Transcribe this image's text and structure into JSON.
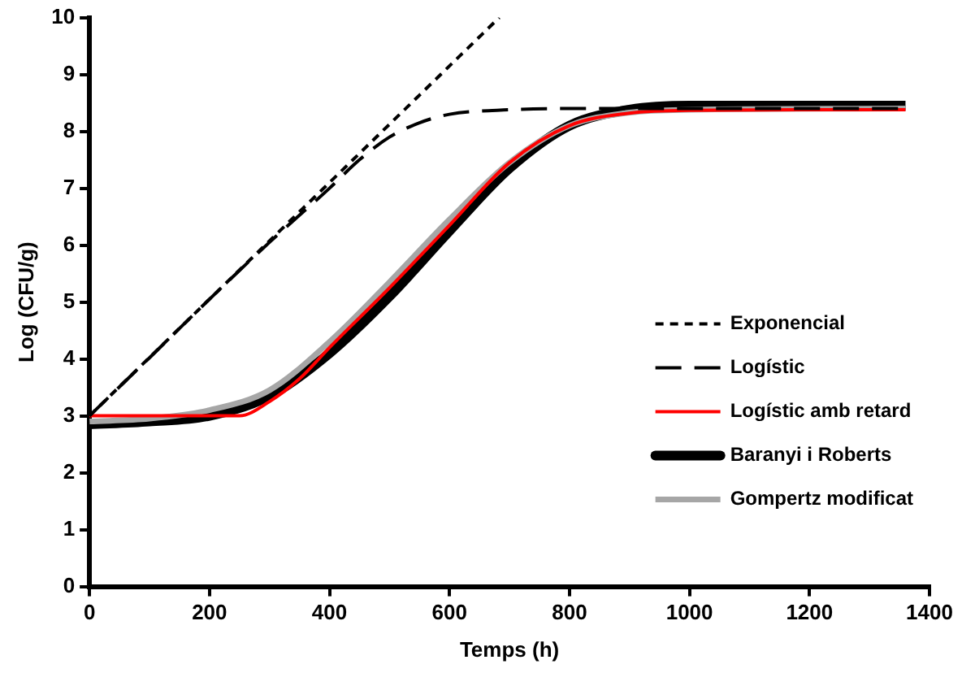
{
  "chart_data": {
    "type": "line",
    "xlabel": "Temps (h)",
    "ylabel": "Log (CFU/g)",
    "xlim": [
      0,
      1400
    ],
    "ylim": [
      0,
      10
    ],
    "xticks": [
      0,
      200,
      400,
      600,
      800,
      1000,
      1200,
      1400
    ],
    "yticks": [
      0,
      1,
      2,
      3,
      4,
      5,
      6,
      7,
      8,
      9,
      10
    ],
    "grid": false,
    "legend": "right",
    "marker": "none",
    "series": [
      {
        "name": "Exponencial",
        "color": "#000000",
        "line_style": "dotted",
        "x": [
          0,
          683
        ],
        "values": [
          3,
          10
        ]
      },
      {
        "name": "Logístic",
        "color": "#000000",
        "line_style": "dashed",
        "x": [
          0,
          100,
          200,
          300,
          400,
          450,
          500,
          550,
          600,
          700,
          800,
          1000,
          1360
        ],
        "values": [
          3,
          4.02,
          5.05,
          6.05,
          7.0,
          7.5,
          7.9,
          8.15,
          8.3,
          8.38,
          8.4,
          8.4,
          8.4
        ]
      },
      {
        "name": "Logístic amb retard",
        "color": "#ff0000",
        "line_style": "solid",
        "x": [
          0,
          250,
          300,
          350,
          400,
          500,
          600,
          700,
          800,
          900,
          1000,
          1360
        ],
        "values": [
          3,
          3,
          3.25,
          3.65,
          4.2,
          5.25,
          6.35,
          7.45,
          8.1,
          8.32,
          8.37,
          8.38
        ]
      },
      {
        "name": "Baranyi i Roberts",
        "color": "#000000",
        "line_style": "solid",
        "x": [
          0,
          100,
          200,
          300,
          400,
          500,
          600,
          700,
          800,
          900,
          1000,
          1360
        ],
        "values": [
          2.85,
          2.9,
          3.0,
          3.35,
          4.1,
          5.1,
          6.25,
          7.35,
          8.1,
          8.38,
          8.45,
          8.45
        ]
      },
      {
        "name": "Gompertz modificat",
        "color": "#a6a6a6",
        "line_style": "solid",
        "x": [
          0,
          100,
          200,
          300,
          400,
          500,
          600,
          700,
          800,
          900,
          1000,
          1360
        ],
        "values": [
          2.9,
          2.95,
          3.1,
          3.45,
          4.3,
          5.35,
          6.45,
          7.45,
          8.1,
          8.33,
          8.38,
          8.4
        ]
      }
    ]
  }
}
